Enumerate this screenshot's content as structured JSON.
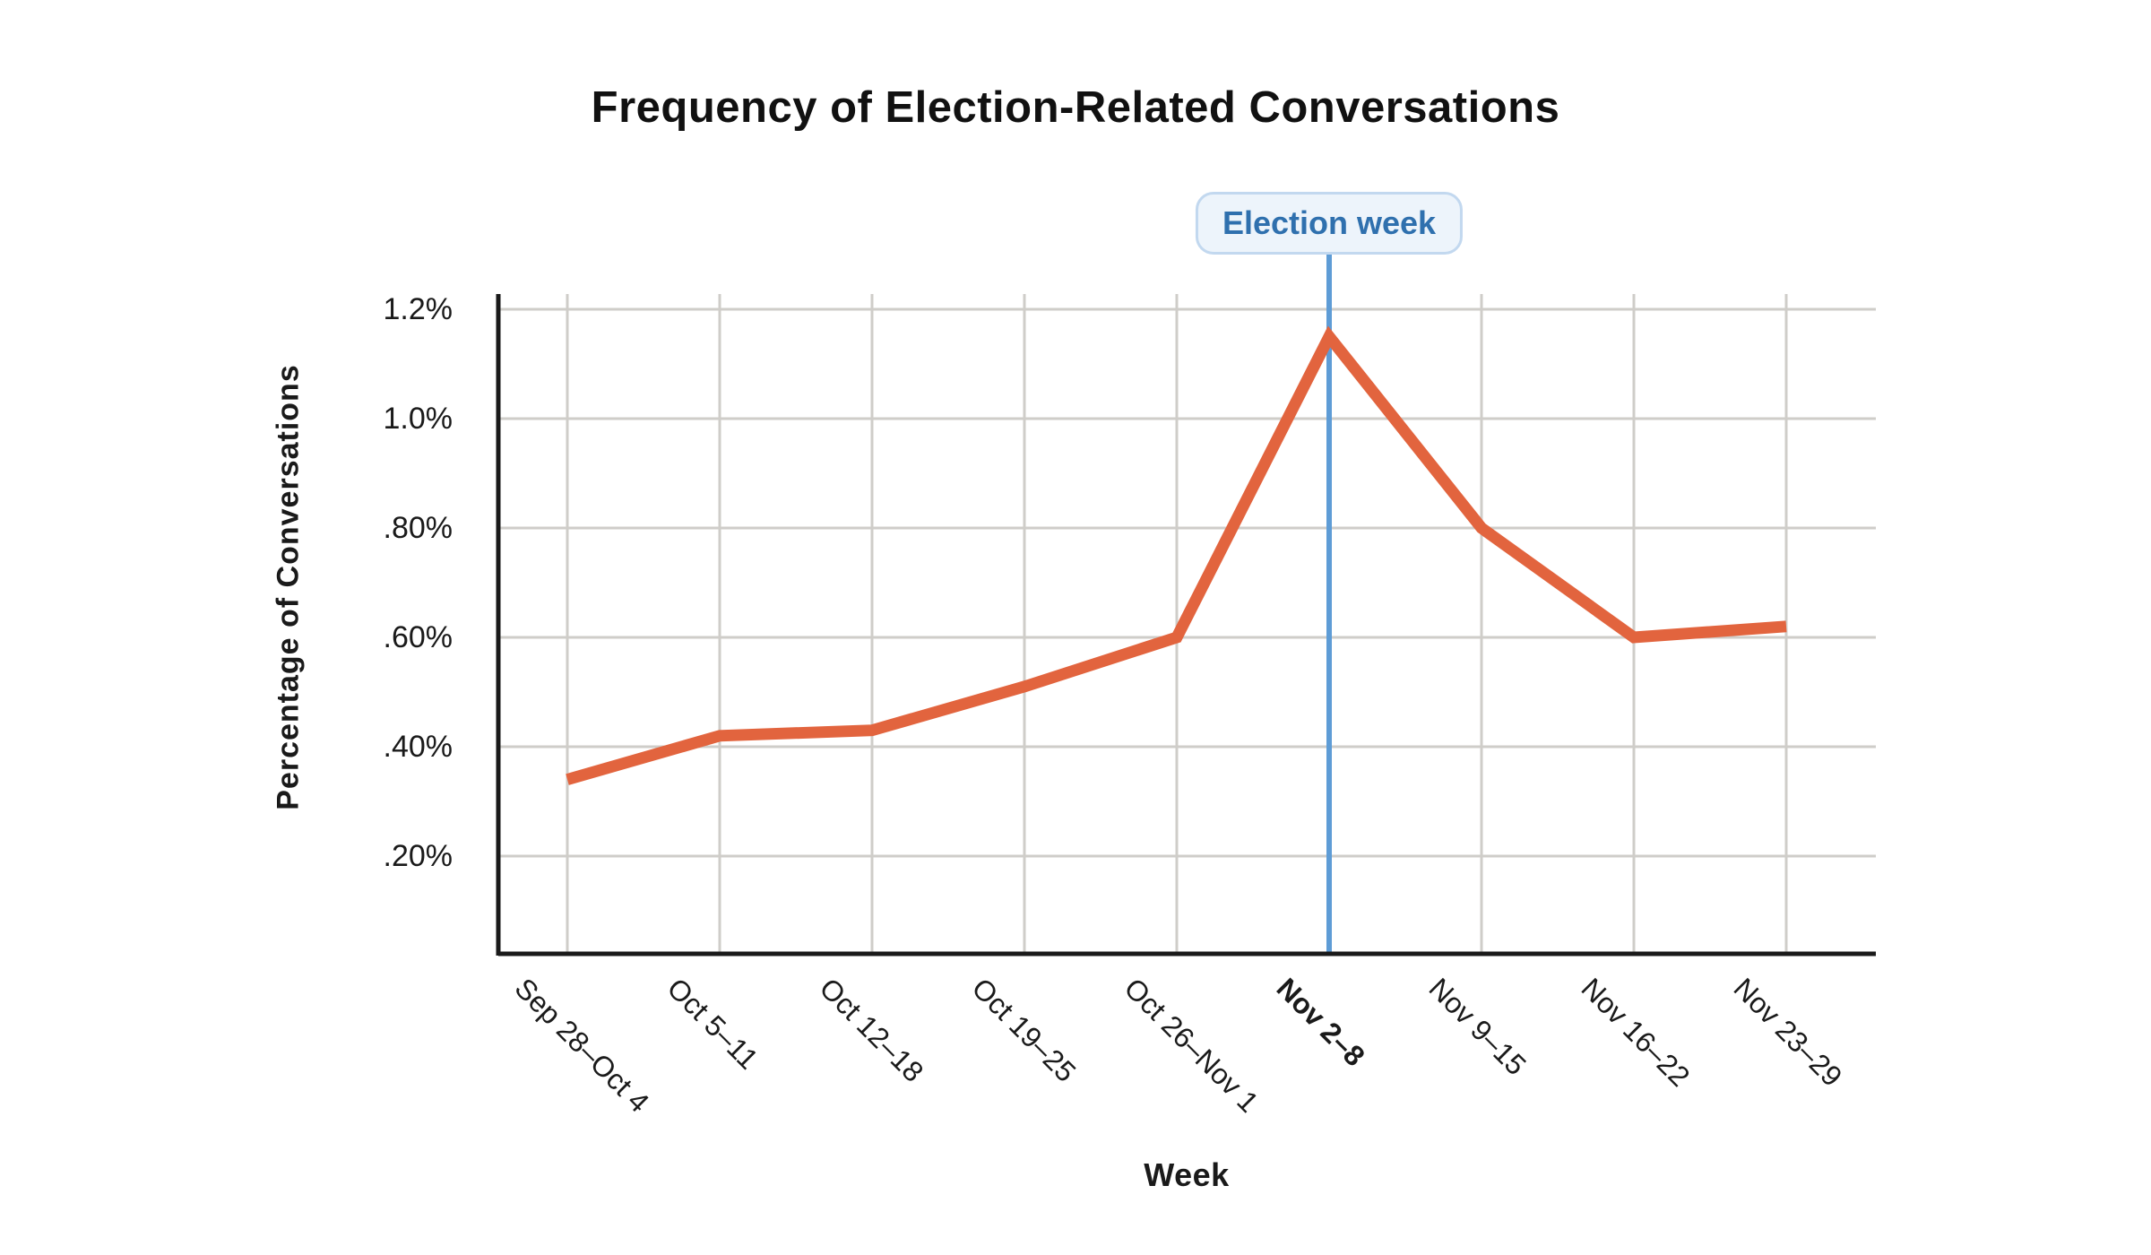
{
  "title": "Frequency of Election-Related Conversations",
  "annotation": {
    "label": "Election week",
    "week": "Nov 2–8"
  },
  "chart_data": {
    "type": "line",
    "title": "Frequency of Election-Related Conversations",
    "xlabel": "Week",
    "ylabel": "Percentage of Conversations",
    "categories": [
      "Sep 28–Oct 4",
      "Oct 5–11",
      "Oct 12–18",
      "Oct 19–25",
      "Oct 26–Nov 1",
      "Nov 2–8",
      "Nov 9–15",
      "Nov 16–22",
      "Nov 23–29"
    ],
    "values": [
      0.34,
      0.42,
      0.43,
      0.51,
      0.6,
      1.15,
      0.8,
      0.6,
      0.62
    ],
    "highlight_index": 5,
    "y_ticks": [
      {
        "label": "1.2%",
        "value": 1.2
      },
      {
        "label": "1.0%",
        "value": 1.0
      },
      {
        "label": ".80%",
        "value": 0.8
      },
      {
        "label": ".60%",
        "value": 0.6
      },
      {
        "label": ".40%",
        "value": 0.4
      },
      {
        "label": ".20%",
        "value": 0.2
      }
    ],
    "ylim": [
      0.02,
      1.24
    ],
    "grid": true,
    "legend": "none",
    "annotation_label": "Election week"
  },
  "colors": {
    "line": "#E2643E",
    "annotation_line": "#5E9CD6",
    "badge_bg": "#EDF4FB",
    "badge_border": "#C2D8EF",
    "badge_text": "#2F70AE",
    "grid": "#CFCDC9",
    "axis": "#1A1A1A",
    "text": "#1A1A1A",
    "background": "#FFFFFF"
  }
}
